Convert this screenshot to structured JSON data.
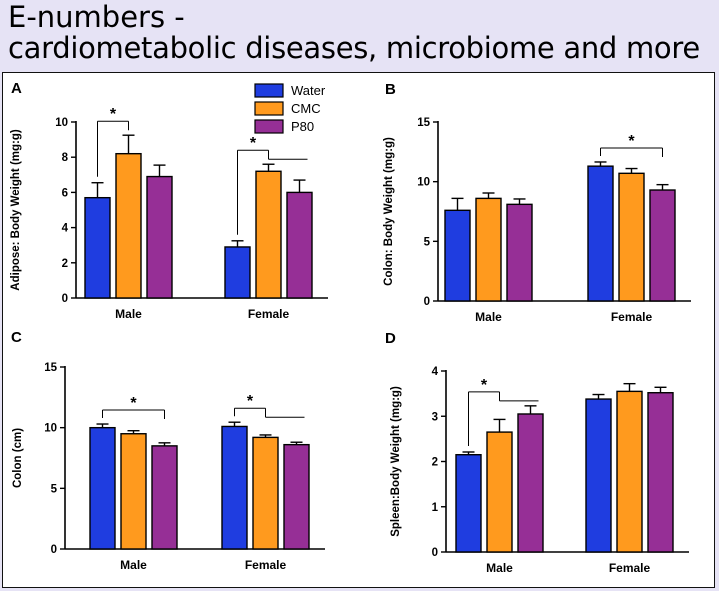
{
  "slide": {
    "title_line1": "E-numbers -",
    "title_line2": "cardiometabolic diseases, microbiome and more"
  },
  "colors": {
    "background": "#e6e3f5",
    "series": [
      "#1f3de0",
      "#ff9a1e",
      "#962f96"
    ]
  },
  "legend": [
    "Water",
    "CMC",
    "P80"
  ],
  "chart_data": [
    {
      "type": "bar",
      "panel": "A",
      "title": "",
      "xlabel": "",
      "ylabel": "Adipose: Body Weight (mg:g)",
      "ylim": [
        0,
        10
      ],
      "yticks": [
        0,
        2,
        4,
        6,
        8,
        10
      ],
      "categories": [
        "Male",
        "Female"
      ],
      "series": [
        {
          "name": "Water",
          "values": [
            5.7,
            2.9
          ],
          "errors": [
            0.85,
            0.35
          ]
        },
        {
          "name": "CMC",
          "values": [
            8.2,
            7.2
          ],
          "errors": [
            1.05,
            0.4
          ]
        },
        {
          "name": "P80",
          "values": [
            6.9,
            6.0
          ],
          "errors": [
            0.65,
            0.7
          ]
        }
      ],
      "significance": [
        {
          "label": "*",
          "group": 0,
          "from": 0,
          "to": [
            1
          ]
        },
        {
          "label": "*",
          "group": 1,
          "from": 0,
          "to": [
            1,
            2
          ]
        }
      ]
    },
    {
      "type": "bar",
      "panel": "B",
      "title": "",
      "xlabel": "",
      "ylabel": "Colon: Body Weight (mg:g)",
      "ylim": [
        0,
        15
      ],
      "yticks": [
        0,
        5,
        10,
        15
      ],
      "categories": [
        "Male",
        "Female"
      ],
      "series": [
        {
          "name": "Water",
          "values": [
            7.6,
            11.3
          ],
          "errors": [
            1.0,
            0.35
          ]
        },
        {
          "name": "CMC",
          "values": [
            8.6,
            10.7
          ],
          "errors": [
            0.45,
            0.4
          ]
        },
        {
          "name": "P80",
          "values": [
            8.1,
            9.3
          ],
          "errors": [
            0.45,
            0.45
          ]
        }
      ],
      "significance": [
        {
          "label": "*",
          "group": 1,
          "from": 0,
          "to": [
            2
          ]
        }
      ]
    },
    {
      "type": "bar",
      "panel": "C",
      "title": "",
      "xlabel": "",
      "ylabel": "Colon (cm)",
      "ylim": [
        0,
        15
      ],
      "yticks": [
        0,
        5,
        10,
        15
      ],
      "categories": [
        "Male",
        "Female"
      ],
      "series": [
        {
          "name": "Water",
          "values": [
            10.0,
            10.1
          ],
          "errors": [
            0.3,
            0.35
          ]
        },
        {
          "name": "CMC",
          "values": [
            9.5,
            9.2
          ],
          "errors": [
            0.25,
            0.2
          ]
        },
        {
          "name": "P80",
          "values": [
            8.5,
            8.6
          ],
          "errors": [
            0.25,
            0.2
          ]
        }
      ],
      "significance": [
        {
          "label": "*",
          "group": 0,
          "from": 0,
          "to": [
            2
          ]
        },
        {
          "label": "*",
          "group": 1,
          "from": 0,
          "to": [
            1,
            2
          ]
        }
      ]
    },
    {
      "type": "bar",
      "panel": "D",
      "title": "",
      "xlabel": "",
      "ylabel": "Spleen:Body Weight (mg:g)",
      "ylim": [
        0,
        4
      ],
      "yticks": [
        0,
        1,
        2,
        3,
        4
      ],
      "categories": [
        "Male",
        "Female"
      ],
      "series": [
        {
          "name": "Water",
          "values": [
            2.15,
            3.38
          ],
          "errors": [
            0.06,
            0.1
          ]
        },
        {
          "name": "CMC",
          "values": [
            2.65,
            3.55
          ],
          "errors": [
            0.28,
            0.17
          ]
        },
        {
          "name": "P80",
          "values": [
            3.05,
            3.52
          ],
          "errors": [
            0.18,
            0.12
          ]
        }
      ],
      "significance": [
        {
          "label": "*",
          "group": 0,
          "from": 0,
          "to": [
            1,
            2
          ]
        }
      ]
    }
  ]
}
